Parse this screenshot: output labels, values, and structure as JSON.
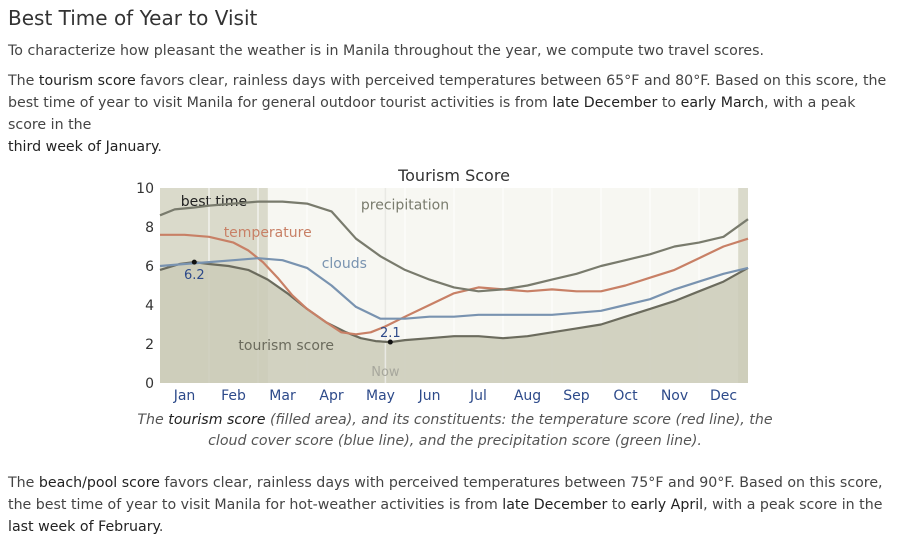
{
  "heading": "Best Time of Year to Visit",
  "intro": "To characterize how pleasant the weather is in Manila throughout the year, we compute two travel scores.",
  "tourism_paragraph": {
    "p1": "The ",
    "term": "tourism score",
    "p2": " favors clear, rainless days with perceived temperatures between 65°F and 80°F. Based on this score, the best time of year to visit Manila for general outdoor tourist activities is from ",
    "start": "late December",
    "p3": " to ",
    "end": "early March",
    "p4": ", with a peak score in the ",
    "peak": "third week of January",
    "p5": "."
  },
  "caption": {
    "p1": "The ",
    "term": "tourism score",
    "p2": " (filled area), and its constituents: the temperature score (red line), the cloud cover score (blue line), and the precipitation score (green line)."
  },
  "beach_paragraph": {
    "p1": "The ",
    "term": "beach/pool score",
    "p2": " favors clear, rainless days with perceived temperatures between 75°F and 90°F. Based on this score, the best time of year to visit Manila for hot-weather activities is from ",
    "start": "late December",
    "p3": " to ",
    "end": "early April",
    "p4": ", with a peak score in the ",
    "peak": "last week of February",
    "p5": "."
  },
  "chart_data": {
    "type": "area",
    "title": "Tourism Score",
    "ylim": [
      0,
      10
    ],
    "yticks": [
      0,
      2,
      4,
      6,
      8,
      10
    ],
    "xlim": [
      0,
      12
    ],
    "month_labels": [
      "Jan",
      "Feb",
      "Mar",
      "Apr",
      "May",
      "Jun",
      "Jul",
      "Aug",
      "Sep",
      "Oct",
      "Nov",
      "Dec"
    ],
    "best_time_label": "best time",
    "best_time_bands": [
      [
        0,
        2.2
      ],
      [
        11.8,
        12
      ]
    ],
    "now_label": "Now",
    "now_x": 4.6,
    "series": [
      {
        "name": "tourism score",
        "kind": "area",
        "color": "#6b6b5d",
        "fill": "#cbcbb9",
        "x": [
          0,
          0.4,
          0.7,
          1.0,
          1.4,
          1.8,
          2.2,
          2.6,
          3.0,
          3.4,
          3.8,
          4.1,
          4.4,
          4.7,
          5.0,
          5.5,
          6.0,
          6.5,
          7.0,
          7.5,
          8.0,
          8.5,
          9.0,
          9.5,
          10.0,
          10.5,
          11.0,
          11.5,
          12.0
        ],
        "values": [
          5.8,
          6.1,
          6.2,
          6.1,
          6.0,
          5.8,
          5.3,
          4.6,
          3.8,
          3.1,
          2.6,
          2.3,
          2.15,
          2.1,
          2.2,
          2.3,
          2.4,
          2.4,
          2.3,
          2.4,
          2.6,
          2.8,
          3.0,
          3.4,
          3.8,
          4.2,
          4.7,
          5.2,
          5.9
        ]
      },
      {
        "name": "temperature",
        "kind": "line",
        "color": "#c88066",
        "x": [
          0,
          0.5,
          1.0,
          1.5,
          1.8,
          2.1,
          2.4,
          2.7,
          3.0,
          3.4,
          3.7,
          4.0,
          4.3,
          4.6,
          5.0,
          5.5,
          6.0,
          6.5,
          7.0,
          7.5,
          8.0,
          8.5,
          9.0,
          9.5,
          10.0,
          10.5,
          11.0,
          11.5,
          12.0
        ],
        "values": [
          7.6,
          7.6,
          7.5,
          7.2,
          6.8,
          6.2,
          5.4,
          4.5,
          3.8,
          3.1,
          2.6,
          2.5,
          2.6,
          2.9,
          3.4,
          4.0,
          4.6,
          4.9,
          4.8,
          4.7,
          4.8,
          4.7,
          4.7,
          5.0,
          5.4,
          5.8,
          6.4,
          7.0,
          7.4
        ]
      },
      {
        "name": "clouds",
        "kind": "line",
        "color": "#7993b0",
        "x": [
          0,
          0.5,
          1.0,
          1.5,
          2.0,
          2.5,
          3.0,
          3.5,
          4.0,
          4.5,
          5.0,
          5.5,
          6.0,
          6.5,
          7.0,
          7.5,
          8.0,
          8.5,
          9.0,
          9.5,
          10.0,
          10.5,
          11.0,
          11.5,
          12.0
        ],
        "values": [
          6.0,
          6.1,
          6.2,
          6.3,
          6.4,
          6.3,
          5.9,
          5.0,
          3.9,
          3.3,
          3.3,
          3.4,
          3.4,
          3.5,
          3.5,
          3.5,
          3.5,
          3.6,
          3.7,
          4.0,
          4.3,
          4.8,
          5.2,
          5.6,
          5.9
        ]
      },
      {
        "name": "precipitation",
        "kind": "line",
        "color": "#797b6d",
        "x": [
          0,
          0.3,
          0.7,
          1.0,
          1.5,
          2.0,
          2.5,
          3.0,
          3.5,
          4.0,
          4.5,
          5.0,
          5.5,
          6.0,
          6.5,
          7.0,
          7.5,
          8.0,
          8.5,
          9.0,
          9.5,
          10.0,
          10.5,
          11.0,
          11.5,
          12.0
        ],
        "values": [
          8.6,
          8.9,
          9.0,
          9.1,
          9.2,
          9.3,
          9.3,
          9.2,
          8.8,
          7.4,
          6.5,
          5.8,
          5.3,
          4.9,
          4.7,
          4.8,
          5.0,
          5.3,
          5.6,
          6.0,
          6.3,
          6.6,
          7.0,
          7.2,
          7.5,
          8.4
        ]
      }
    ],
    "series_label_text": {
      "tourism score": "tourism score",
      "temperature": "temperature",
      "clouds": "clouds",
      "precipitation": "precipitation"
    },
    "annotations": [
      {
        "label": "6.2",
        "x": 0.7,
        "y": 6.2
      },
      {
        "label": "2.1",
        "x": 4.7,
        "y": 2.1
      }
    ]
  }
}
